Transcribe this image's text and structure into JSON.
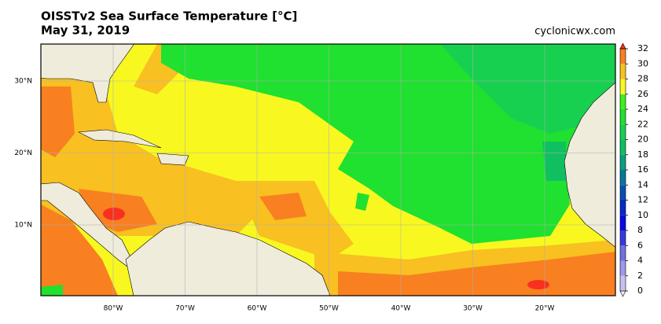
{
  "header": {
    "title": "OISSTv2 Sea Surface Temperature [°C]",
    "subtitle": "May 31, 2019",
    "credit": "cyclonicwx.com"
  },
  "map": {
    "lat_labels": [
      "30°N",
      "20°N",
      "10°N"
    ],
    "lon_labels": [
      "80°W",
      "70°W",
      "60°W",
      "50°W",
      "40°W",
      "30°W",
      "20°W"
    ]
  },
  "colorbar": {
    "ticks": [
      0,
      2,
      4,
      6,
      8,
      10,
      12,
      14,
      16,
      18,
      20,
      22,
      24,
      26,
      28,
      30,
      32
    ],
    "colors": [
      "#f0f0ff",
      "#c8c0f0",
      "#a098e8",
      "#7070e0",
      "#3838e0",
      "#0808e8",
      "#0828c8",
      "#0850b0",
      "#087898",
      "#08a080",
      "#10c060",
      "#18d050",
      "#20e030",
      "#40f020",
      "#f8f820",
      "#f8c020",
      "#f88020",
      "#f83020"
    ]
  }
}
